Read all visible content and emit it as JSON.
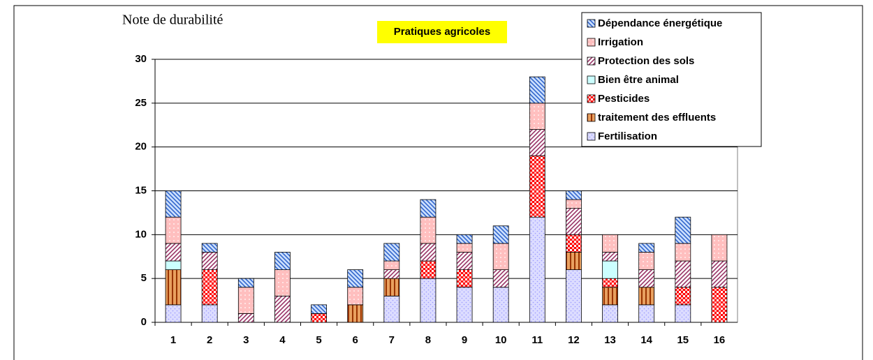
{
  "chart_data": {
    "type": "stacked_bar",
    "title": "Pratiques agricoles",
    "y_label": "Note de durabilité",
    "categories": [
      "1",
      "2",
      "3",
      "4",
      "5",
      "6",
      "7",
      "8",
      "9",
      "10",
      "11",
      "12",
      "13",
      "14",
      "15",
      "16"
    ],
    "series": [
      {
        "name": "Fertilisation",
        "color": "#9999ff",
        "values": [
          2,
          2,
          0,
          0,
          0,
          0,
          3,
          5,
          4,
          4,
          12,
          6,
          2,
          2,
          2,
          0
        ]
      },
      {
        "name": "traitement des effluents",
        "color": "#993300",
        "values": [
          4,
          0,
          0,
          0,
          0,
          2,
          2,
          0,
          0,
          0,
          0,
          2,
          2,
          2,
          0,
          0
        ]
      },
      {
        "name": "Pesticides",
        "color": "#ff0000",
        "values": [
          0,
          4,
          0,
          0,
          1,
          0,
          0,
          2,
          2,
          0,
          7,
          2,
          1,
          0,
          2,
          4
        ]
      },
      {
        "name": "Bien être animal",
        "color": "#33cccc",
        "values": [
          1,
          0,
          0,
          0,
          0,
          0,
          0,
          0,
          0,
          0,
          0,
          0,
          2,
          0,
          0,
          0
        ]
      },
      {
        "name": "Protection des sols",
        "color": "#993366",
        "values": [
          2,
          2,
          1,
          3,
          0,
          0,
          1,
          2,
          2,
          2,
          3,
          3,
          1,
          2,
          3,
          3
        ]
      },
      {
        "name": "Irrigation",
        "color": "#ff8080",
        "values": [
          3,
          0,
          3,
          3,
          0,
          2,
          1,
          3,
          1,
          3,
          3,
          1,
          2,
          2,
          2,
          3
        ]
      },
      {
        "name": "Dépendance énergétique",
        "color": "#3366cc",
        "values": [
          3,
          1,
          1,
          2,
          1,
          2,
          2,
          2,
          1,
          2,
          3,
          1,
          0,
          1,
          3,
          0
        ]
      }
    ],
    "ylim": [
      0,
      30
    ],
    "yticks": [
      0,
      5,
      10,
      15,
      20,
      25,
      30
    ],
    "grid": true,
    "legend": "top-right"
  }
}
